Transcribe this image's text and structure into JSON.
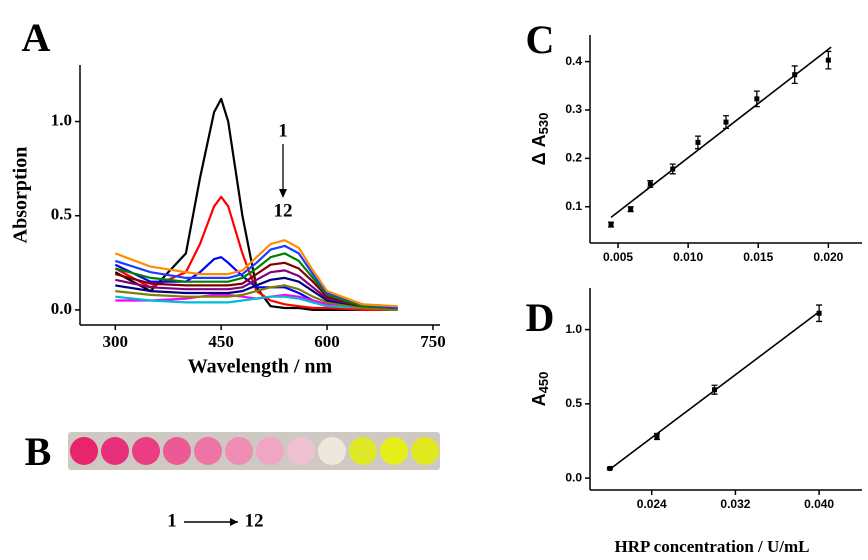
{
  "chart_data": [
    {
      "type": "line",
      "panel_label": "A",
      "x_label": "Wavelength / nm",
      "y_label": "Absorption",
      "annotations": [
        "1",
        "12"
      ],
      "x": [
        300,
        350,
        400,
        420,
        440,
        450,
        460,
        480,
        500,
        520,
        540,
        560,
        580,
        600,
        650,
        700
      ],
      "series": [
        {
          "color": "#000000",
          "values": [
            0.2,
            0.1,
            0.3,
            0.7,
            1.05,
            1.12,
            1.0,
            0.5,
            0.12,
            0.02,
            0.01,
            0.01,
            0.0,
            0.0,
            0.0,
            0.0
          ]
        },
        {
          "color": "#ff0000",
          "values": [
            0.22,
            0.12,
            0.2,
            0.35,
            0.55,
            0.6,
            0.55,
            0.3,
            0.1,
            0.05,
            0.03,
            0.02,
            0.01,
            0.01,
            0.0,
            0.0
          ]
        },
        {
          "color": "#0000ff",
          "values": [
            0.24,
            0.15,
            0.15,
            0.2,
            0.27,
            0.28,
            0.25,
            0.18,
            0.12,
            0.12,
            0.12,
            0.09,
            0.05,
            0.03,
            0.01,
            0.0
          ]
        },
        {
          "color": "#ff00ff",
          "values": [
            0.05,
            0.05,
            0.06,
            0.07,
            0.08,
            0.08,
            0.08,
            0.07,
            0.06,
            0.07,
            0.08,
            0.07,
            0.05,
            0.03,
            0.01,
            0.0
          ]
        },
        {
          "color": "#00bcd4",
          "values": [
            0.07,
            0.05,
            0.04,
            0.04,
            0.04,
            0.04,
            0.04,
            0.05,
            0.06,
            0.07,
            0.07,
            0.06,
            0.04,
            0.02,
            0.01,
            0.0
          ]
        },
        {
          "color": "#808000",
          "values": [
            0.1,
            0.08,
            0.07,
            0.07,
            0.07,
            0.07,
            0.07,
            0.08,
            0.1,
            0.12,
            0.13,
            0.11,
            0.07,
            0.04,
            0.01,
            0.0
          ]
        },
        {
          "color": "#000080",
          "values": [
            0.13,
            0.1,
            0.09,
            0.09,
            0.09,
            0.09,
            0.09,
            0.1,
            0.13,
            0.16,
            0.17,
            0.15,
            0.1,
            0.05,
            0.02,
            0.01
          ]
        },
        {
          "color": "#800080",
          "values": [
            0.16,
            0.12,
            0.11,
            0.11,
            0.11,
            0.11,
            0.11,
            0.12,
            0.16,
            0.2,
            0.21,
            0.18,
            0.12,
            0.06,
            0.02,
            0.01
          ]
        },
        {
          "color": "#800000",
          "values": [
            0.19,
            0.14,
            0.13,
            0.13,
            0.13,
            0.13,
            0.13,
            0.14,
            0.19,
            0.24,
            0.25,
            0.22,
            0.15,
            0.07,
            0.02,
            0.01
          ]
        },
        {
          "color": "#008000",
          "values": [
            0.22,
            0.17,
            0.15,
            0.15,
            0.15,
            0.15,
            0.15,
            0.17,
            0.22,
            0.28,
            0.3,
            0.26,
            0.17,
            0.08,
            0.02,
            0.01
          ]
        },
        {
          "color": "#1e3cff",
          "values": [
            0.26,
            0.2,
            0.17,
            0.17,
            0.17,
            0.17,
            0.17,
            0.19,
            0.25,
            0.32,
            0.34,
            0.3,
            0.19,
            0.09,
            0.03,
            0.01
          ]
        },
        {
          "color": "#ff8c00",
          "values": [
            0.3,
            0.23,
            0.2,
            0.19,
            0.19,
            0.19,
            0.19,
            0.21,
            0.28,
            0.35,
            0.37,
            0.33,
            0.21,
            0.1,
            0.03,
            0.02
          ]
        }
      ],
      "xlim": [
        250,
        760
      ],
      "ylim": [
        -0.08,
        1.3
      ],
      "xticks": [
        300,
        450,
        600,
        750
      ],
      "yticks": [
        {
          "value": 0,
          "label": "0.0"
        },
        0.5,
        {
          "value": 1,
          "label": "1.0"
        }
      ]
    },
    {
      "type": "scatter",
      "panel_label": "C",
      "y_label": {
        "text": "Δ A",
        "subscript": "530"
      },
      "x": [
        0.0045,
        0.0059,
        0.0073,
        0.0089,
        0.0107,
        0.0127,
        0.0149,
        0.0176,
        0.02
      ],
      "values": [
        0.063,
        0.095,
        0.147,
        0.178,
        0.233,
        0.275,
        0.323,
        0.373,
        0.403
      ],
      "errors": [
        0.005,
        0.005,
        0.007,
        0.01,
        0.013,
        0.013,
        0.016,
        0.018,
        0.018
      ],
      "fit": {
        "x": [
          0.0045,
          0.0202
        ],
        "y": [
          0.078,
          0.43
        ]
      },
      "color": "#000000",
      "xlim": [
        0.003,
        0.0224
      ],
      "ylim": [
        0.025,
        0.455
      ],
      "xticks": [
        0.005,
        {
          "value": 0.01,
          "label": "0.010"
        },
        0.015,
        {
          "value": 0.02,
          "label": "0.020"
        }
      ],
      "yticks": [
        0.1,
        0.2,
        0.3,
        0.4
      ]
    },
    {
      "type": "scatter",
      "panel_label": "D",
      "y_label": {
        "text": "A",
        "subscript": "450"
      },
      "x_label": "HRP concentration / U/mL",
      "x": [
        0.02,
        0.0245,
        0.03,
        0.04
      ],
      "values": [
        0.065,
        0.28,
        0.595,
        1.11
      ],
      "errors": [
        0.005,
        0.02,
        0.03,
        0.055
      ],
      "fit": {
        "x": [
          0.02,
          0.04
        ],
        "y": [
          0.06,
          1.12
        ]
      },
      "color": "#000000",
      "xlim": [
        0.0181,
        0.0441
      ],
      "ylim": [
        -0.08,
        1.28
      ],
      "xticks": [
        0.024,
        0.032,
        {
          "value": 0.04,
          "label": "0.040"
        }
      ],
      "yticks": [
        {
          "value": 0,
          "label": "0.0"
        },
        0.5,
        {
          "value": 1,
          "label": "1.0"
        }
      ]
    }
  ],
  "photo": {
    "label": "B",
    "from": "1",
    "to": "12"
  }
}
